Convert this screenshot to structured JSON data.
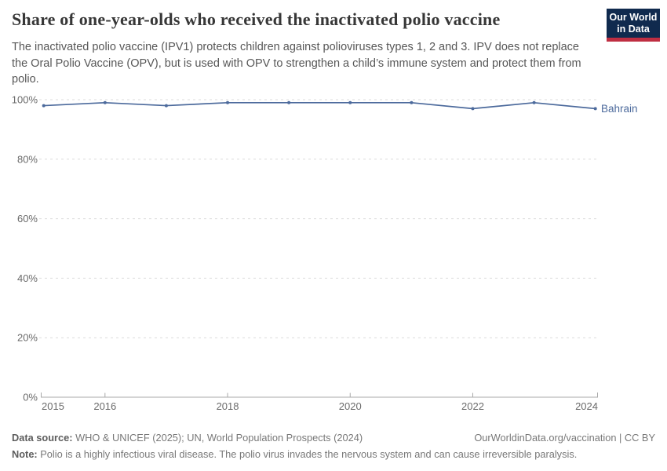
{
  "header": {
    "title": "Share of one-year-olds who received the inactivated polio vaccine",
    "subtitle": "The inactivated polio vaccine (IPV1) protects children against polioviruses types 1, 2 and 3. IPV does not replace the Oral Polio Vaccine (OPV), but is used with OPV to strengthen a child’s immune system and protect them from polio.",
    "logo": {
      "line1": "Our World",
      "line2": "in Data"
    }
  },
  "chart_data": {
    "type": "line",
    "title": "Share of one-year-olds who received the inactivated polio vaccine",
    "subtitle": "The inactivated polio vaccine (IPV1) protects children against polioviruses types 1, 2 and 3. IPV does not replace the Oral Polio Vaccine (OPV), but is used with OPV to strengthen a child’s immune system and protect them from polio.",
    "x": [
      2015,
      2016,
      2017,
      2018,
      2019,
      2020,
      2021,
      2022,
      2023,
      2024
    ],
    "series": [
      {
        "name": "Bahrain",
        "values": [
          98,
          99,
          98,
          99,
          99,
          99,
          99,
          97,
          99,
          97
        ]
      }
    ],
    "xlabel": "",
    "ylabel": "",
    "xlim": [
      2015,
      2024
    ],
    "ylim": [
      0,
      100
    ],
    "xticks": [
      2015,
      2016,
      2018,
      2020,
      2022,
      2024
    ],
    "yticks": [
      0,
      20,
      40,
      60,
      80,
      100
    ],
    "ytick_labels": [
      "0%",
      "20%",
      "40%",
      "60%",
      "80%",
      "100%"
    ],
    "grid": "horizontal-dashed",
    "legend": "end-of-line-label"
  },
  "colors": {
    "line": "#4C6A9C",
    "series_label": "#4C6A9C",
    "grid": "#dcdcdc",
    "axis": "#a8a8a8",
    "tick_label": "#6b6b6b",
    "logo_bg": "#102a4e",
    "logo_red": "#bf2e42"
  },
  "footer": {
    "data_source_label": "Data source:",
    "data_source_text": " WHO & UNICEF (2025); UN, World Population Prospects (2024)",
    "attribution": "OurWorldinData.org/vaccination | CC BY",
    "note_label": "Note:",
    "note_text": " Polio is a highly infectious viral disease. The polio virus invades the nervous system and can cause irreversible paralysis."
  }
}
